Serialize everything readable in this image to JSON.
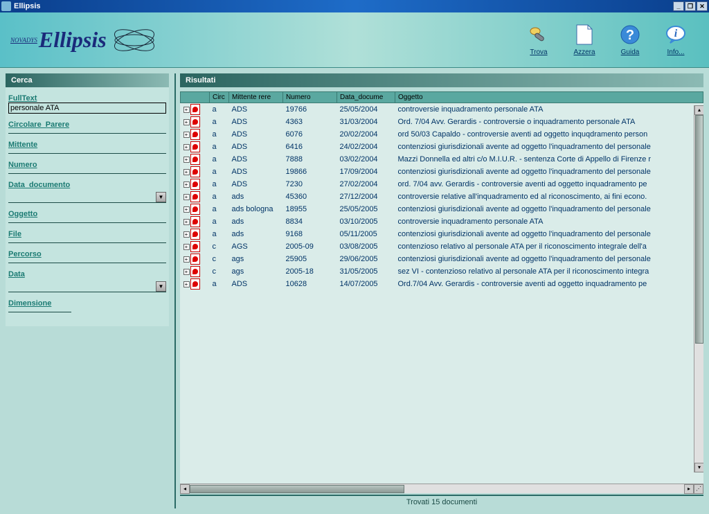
{
  "window": {
    "title": "Ellipsis"
  },
  "logo": {
    "brand": "NOVADYS",
    "product": "Ellipsis"
  },
  "toolbar": {
    "trova": "Trova",
    "azzera": "Azzera",
    "guida": "Guida",
    "info": "Info..."
  },
  "search": {
    "title": "Cerca",
    "labels": {
      "fulltext": "FullText",
      "circolare": "Circolare_Parere",
      "mittente": "Mittente",
      "numero": "Numero",
      "data_doc": "Data_documento",
      "oggetto": "Oggetto",
      "file": "File",
      "percorso": "Percorso",
      "data": "Data",
      "dimensione": "Dimensione"
    },
    "fulltext_value": "personale ATA"
  },
  "results": {
    "title": "Risultati",
    "columns": {
      "circ": "Circ",
      "mittente": "Mittente rere",
      "numero": "Numero",
      "data": "Data_docume",
      "oggetto": "Oggetto"
    },
    "rows": [
      {
        "c": "a",
        "m": "ADS",
        "n": "19766",
        "d": "25/05/2004",
        "o": "controversie inquadramento personale ATA"
      },
      {
        "c": "a",
        "m": "ADS",
        "n": "4363",
        "d": "31/03/2004",
        "o": "Ord. 7/04 Avv. Gerardis - controversie o inquadramento personale ATA"
      },
      {
        "c": "a",
        "m": "ADS",
        "n": "6076",
        "d": "20/02/2004",
        "o": "ord 50/03 Capaldo - controversie aventi ad oggetto inquqdramento person"
      },
      {
        "c": "a",
        "m": "ADS",
        "n": "6416",
        "d": "24/02/2004",
        "o": "contenziosi giurisdizionali avente ad oggetto l'inquadramento del personale"
      },
      {
        "c": "a",
        "m": "ADS",
        "n": "7888",
        "d": "03/02/2004",
        "o": "Mazzi Donnella ed altri c/o M.I.U.R. - sentenza Corte di Appello di Firenze r"
      },
      {
        "c": "a",
        "m": "ADS",
        "n": "19866",
        "d": "17/09/2004",
        "o": "contenziosi giurisdizionali avente ad oggetto l'inquadramento del personale"
      },
      {
        "c": "a",
        "m": "ADS",
        "n": "7230",
        "d": "27/02/2004",
        "o": "ord. 7/04 avv. Gerardis - controversie aventi ad oggetto inquadramento pe"
      },
      {
        "c": "a",
        "m": "ads",
        "n": "45360",
        "d": "27/12/2004",
        "o": "controversie relative all'inquadramento ed al riconoscimento, ai fini econo."
      },
      {
        "c": "a",
        "m": "ads bologna",
        "n": "18955",
        "d": "25/05/2005",
        "o": "contenziosi giurisdizionali avente ad oggetto l'inquadramento del personale"
      },
      {
        "c": "a",
        "m": "ads",
        "n": "8834",
        "d": "03/10/2005",
        "o": "controversie inquadramento personale ATA"
      },
      {
        "c": "a",
        "m": "ads",
        "n": "9168",
        "d": "05/11/2005",
        "o": "contenziosi giurisdizionali avente ad oggetto l'inquadramento del personale"
      },
      {
        "c": "c",
        "m": "AGS",
        "n": "2005-09",
        "d": "03/08/2005",
        "o": "contenzioso relativo al personale ATA per il riconoscimento integrale dell'a"
      },
      {
        "c": "c",
        "m": "ags",
        "n": "25905",
        "d": "29/06/2005",
        "o": "contenziosi giurisdizionali avente ad oggetto l'inquadramento del personale"
      },
      {
        "c": "c",
        "m": "ags",
        "n": "2005-18",
        "d": "31/05/2005",
        "o": "sez VI - contenzioso relativo al personale ATA per il riconoscimento integra"
      },
      {
        "c": "a",
        "m": "ADS",
        "n": "10628",
        "d": "14/07/2005",
        "o": "Ord.7/04 Avv. Gerardis - controversie aventi ad oggetto inquadramento pe"
      }
    ],
    "status": "Trovati 15 documenti"
  },
  "colors": {
    "accent": "#1a7a72",
    "header_grad_a": "#5ac0c8",
    "header_grad_b": "#b0e0d8"
  }
}
